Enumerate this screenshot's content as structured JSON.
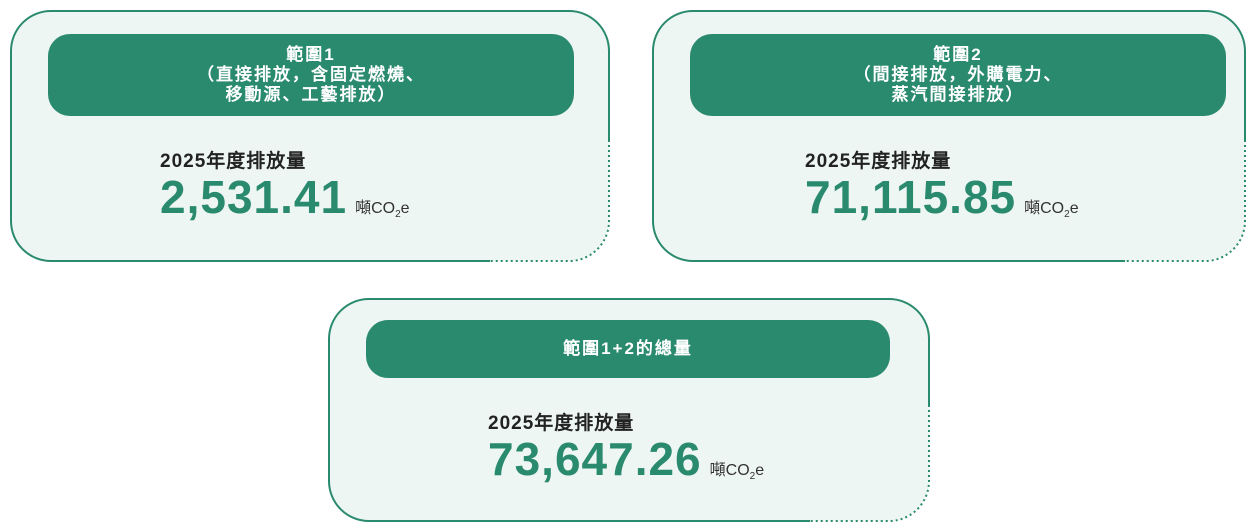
{
  "cards": [
    {
      "header": [
        "範圍1",
        "（直接排放，含固定燃燒、",
        "移動源、工藝排放）"
      ],
      "year_label": "2025年度排放量",
      "value": "2,531.41",
      "unit": {
        "main": "噸CO",
        "sub": "2",
        "tail": "e"
      }
    },
    {
      "header": [
        "範圍2",
        "（間接排放，外購電力、",
        "蒸汽間接排放）"
      ],
      "year_label": "2025年度排放量",
      "value": "71,115.85",
      "unit": {
        "main": "噸CO",
        "sub": "2",
        "tail": "e"
      }
    },
    {
      "header": [
        "範圍1+2的總量"
      ],
      "year_label": "2025年度排放量",
      "value": "73,647.26",
      "unit": {
        "main": "噸CO",
        "sub": "2",
        "tail": "e"
      }
    }
  ]
}
